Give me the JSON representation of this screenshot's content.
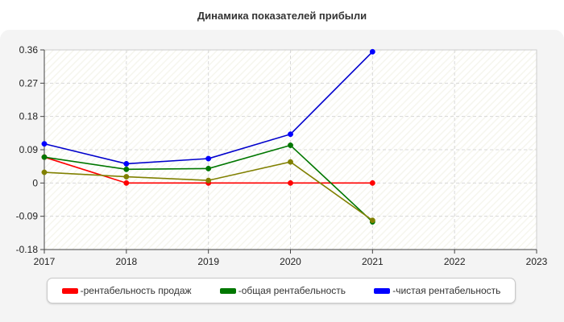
{
  "chart_data": {
    "type": "line",
    "title": "Динамика показателей прибыли",
    "xlabel": "",
    "ylabel": "",
    "x_ticks": [
      "2017",
      "2018",
      "2019",
      "2020",
      "2021",
      "2022",
      "2023"
    ],
    "y_ticks": [
      "0.36",
      "0.27",
      "0.18",
      "0.09",
      "0",
      "-0.09",
      "-0.18"
    ],
    "xlim": [
      2017,
      2023
    ],
    "ylim": [
      -0.18,
      0.36
    ],
    "grid": true,
    "legend_position": "bottom",
    "series": [
      {
        "name": "рентабельность продаж",
        "color": "#ff0000",
        "marker_color": "#ff0000",
        "x": [
          2017,
          2018,
          2019,
          2020,
          2021
        ],
        "values": [
          0.07,
          0.0,
          0.0,
          0.0,
          0.0
        ]
      },
      {
        "name": "общая рентабельность",
        "color": "#007700",
        "marker_color": "#007700",
        "x": [
          2017,
          2018,
          2019,
          2020,
          2021
        ],
        "values": [
          0.07,
          0.037,
          0.039,
          0.102,
          -0.105
        ]
      },
      {
        "name": "чистая рентабельность",
        "color": "#0000cc",
        "marker_color": "#0000ff",
        "x": [
          2017,
          2018,
          2019,
          2020,
          2021
        ],
        "values": [
          0.106,
          0.052,
          0.066,
          0.132,
          0.355
        ]
      },
      {
        "name": "",
        "color": "#808000",
        "marker_color": "#808000",
        "x": [
          2017,
          2018,
          2019,
          2020,
          2021
        ],
        "values": [
          0.029,
          0.017,
          0.007,
          0.057,
          -0.101
        ]
      }
    ]
  }
}
